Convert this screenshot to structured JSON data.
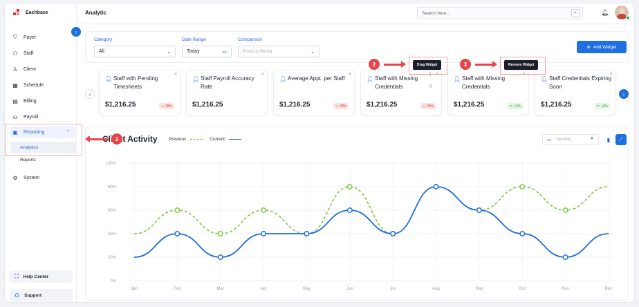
{
  "brand": {
    "name": "Eachbase"
  },
  "header": {
    "title": "Analytic",
    "search_placeholder": "Search here..."
  },
  "sidebar": {
    "items": [
      {
        "label": "Payer",
        "icon": "shield-icon"
      },
      {
        "label": "Staff",
        "icon": "staff-icon"
      },
      {
        "label": "Client",
        "icon": "user-icon"
      },
      {
        "label": "Schedule",
        "icon": "calendar-icon"
      },
      {
        "label": "Billing",
        "icon": "billing-icon"
      },
      {
        "label": "Payroll",
        "icon": "payroll-icon"
      },
      {
        "label": "Reporting",
        "icon": "report-icon"
      },
      {
        "label": "System",
        "icon": "gear-icon"
      }
    ],
    "sub_items": [
      {
        "label": "Analytics"
      },
      {
        "label": "Reports"
      }
    ],
    "help_label": "Help Center",
    "support_label": "Support"
  },
  "filters": {
    "category_label": "Category",
    "category_value": "All",
    "date_range_label": "Date Range",
    "date_range_value": "Today",
    "comparison_label": "Comparison",
    "comparison_placeholder": "Previous Period",
    "add_widget_label": "Add Widget"
  },
  "widgets": [
    {
      "title": "Staff with Pending Timesheets",
      "value": "$1,216.25",
      "change": "28%",
      "trend": "down"
    },
    {
      "title": "Staff Payroll Accuracy Rate",
      "value": "$1,216.25",
      "change": "",
      "trend": "none"
    },
    {
      "title": "Average Appt. per Staff",
      "value": "$1,216.25",
      "change": "28%",
      "trend": "down"
    },
    {
      "title": "Staff with Missing Credentials",
      "value": "$1,216.25",
      "change": "28%",
      "trend": "down"
    },
    {
      "title": "Staff with Missing Credentials",
      "value": "$1,216.25",
      "change": "+2%",
      "trend": "up"
    },
    {
      "title": "Staff Credentials Expiring Soon",
      "value": "$1,216.25",
      "change": "+2%",
      "trend": "up"
    }
  ],
  "tooltips": {
    "drag": "Drag Widget",
    "remove": "Remove Widget"
  },
  "steps": [
    "1",
    "2",
    "3"
  ],
  "chart": {
    "title": "Client Activity",
    "period": "Monthly",
    "legend_previous": "Previous",
    "legend_current": "Current"
  },
  "colors": {
    "accent": "#1e6fe0",
    "previous": "#7cc93e",
    "current": "#1e6fe0",
    "danger": "#e8454a"
  },
  "chart_data": {
    "type": "line",
    "x": [
      "Jan",
      "Feb",
      "Mar",
      "Apr",
      "May",
      "Jun",
      "Jul",
      "Aug",
      "Sep",
      "Oct",
      "Nov",
      "Dec"
    ],
    "y_ticks": [
      "0%",
      "20%",
      "40%",
      "60%",
      "80%",
      "100%"
    ],
    "ylim": [
      0,
      100
    ],
    "series": [
      {
        "name": "Previous",
        "values": [
          40,
          60,
          40,
          60,
          40,
          80,
          40,
          80,
          60,
          80,
          60,
          80
        ],
        "style": "dashed"
      },
      {
        "name": "Current",
        "values": [
          20,
          40,
          20,
          40,
          40,
          60,
          40,
          80,
          60,
          40,
          20,
          40
        ],
        "style": "solid"
      }
    ],
    "marker_indices": [
      1,
      2,
      3,
      4,
      5,
      6,
      7,
      8,
      9,
      10
    ],
    "grid": true,
    "legend": "top-left"
  }
}
